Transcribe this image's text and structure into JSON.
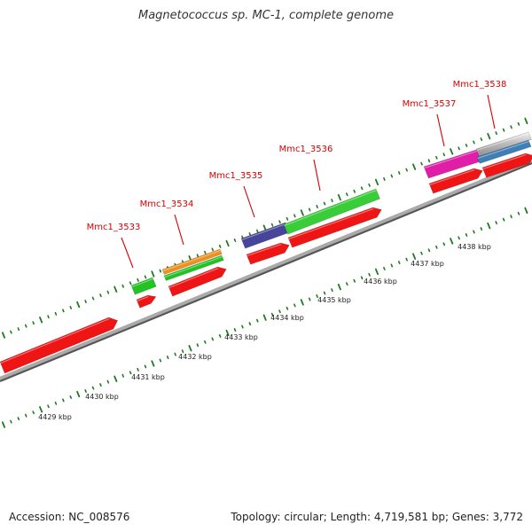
{
  "title": "Magnetococcus sp. MC-1, complete genome",
  "footer": {
    "accession": "Accession: NC_008576",
    "summary": "Topology: circular; Length: 4,719,581 bp; Genes: 3,772"
  },
  "colors": {
    "background": "#ffffff",
    "backbone": "#777777",
    "ticks": "#1f7a1f",
    "labels": "#d60000",
    "axis_text": "#222222"
  },
  "map": {
    "scale_labels": [
      "4429 kbp",
      "4430 kbp",
      "4431 kbp",
      "4432 kbp",
      "4433 kbp",
      "4434 kbp",
      "4435 kbp",
      "4436 kbp",
      "4437 kbp",
      "4438 kbp"
    ],
    "gene_labels": [
      "Mmc1_3533",
      "Mmc1_3534",
      "Mmc1_3535",
      "Mmc1_3536",
      "Mmc1_3537",
      "Mmc1_3538"
    ]
  }
}
